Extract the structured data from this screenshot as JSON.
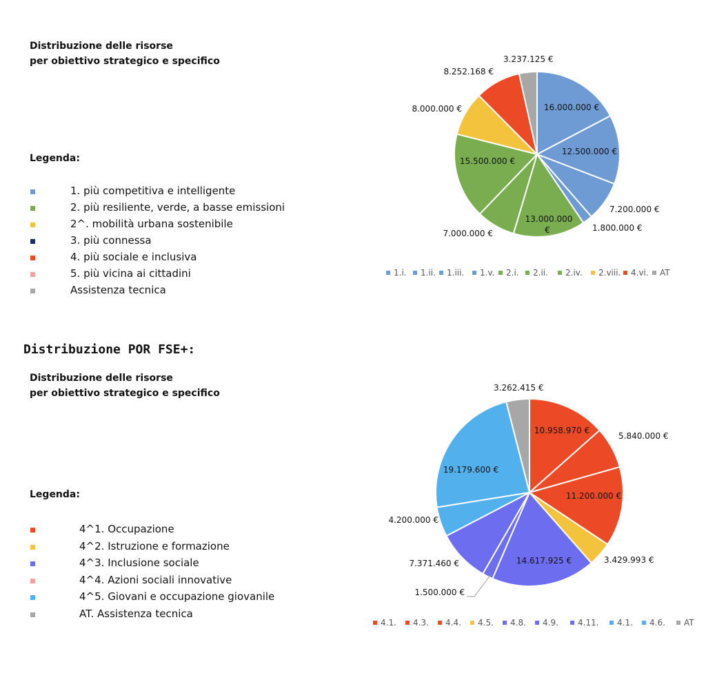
{
  "top": {
    "subtitle_line1": "Distribuzione delle risorse",
    "subtitle_line2": "per obiettivo strategico e specifico",
    "legend_title": "Legenda:",
    "legend": [
      {
        "label": "1. più competitiva e intelligente",
        "color": "#6f9bd4"
      },
      {
        "label": "2. più resiliente, verde, a basse emissioni",
        "color": "#79ad4f"
      },
      {
        "label": "2^. mobilità urbana sostenibile",
        "color": "#f4c33e"
      },
      {
        "label": "3. più connessa",
        "color": "#1c2d6b"
      },
      {
        "label": "4. più sociale e inclusiva",
        "color": "#ec4a26"
      },
      {
        "label": "5. più vicina ai cittadini",
        "color": "#f1a39c"
      },
      {
        "label": "Assistenza tecnica",
        "color": "#a7a7a7"
      }
    ]
  },
  "bottom": {
    "section_title": "Distribuzione POR FSE+:",
    "subtitle_line1": "Distribuzione delle risorse",
    "subtitle_line2": "per obiettivo strategico e specifico",
    "legend_title": "Legenda:",
    "legend": [
      {
        "label": "4^1. Occupazione",
        "color": "#ec4a26"
      },
      {
        "label": "4^2. Istruzione e formazione",
        "color": "#f4c33e"
      },
      {
        "label": "4^3. Inclusione sociale",
        "color": "#6d6df0"
      },
      {
        "label": "4^4. Azioni sociali innovative",
        "color": "#f1a39c"
      },
      {
        "label": "4^5. Giovani e occupazione giovanile",
        "color": "#52b0ec"
      },
      {
        "label": "AT. Assistenza tecnica",
        "color": "#a7a7a7"
      }
    ]
  },
  "chart_data": [
    {
      "type": "pie",
      "start_angle": "12 o'clock",
      "direction": "clockwise",
      "categories": [
        "1.i.",
        "1.ii.",
        "1.iii.",
        "1.v.",
        "2.i.",
        "2.ii.",
        "2.iv.",
        "2.viii.",
        "4.vi.",
        "AT"
      ],
      "values": [
        16000000,
        12500000,
        7200000,
        1800000,
        13000000,
        7000000,
        15500000,
        8000000,
        8252168,
        3237125
      ],
      "labels": [
        "16.000.000 €",
        "12.500.000 €",
        "7.200.000 €",
        "1.800.000 €",
        "13.000.000 €",
        "7.000.000 €",
        "15.500.000 €",
        "8.000.000 €",
        "8.252.168 €",
        "3.237.125 €"
      ],
      "colors": [
        "#6f9bd4",
        "#6f9bd4",
        "#6f9bd4",
        "#6f9bd4",
        "#79ad4f",
        "#79ad4f",
        "#79ad4f",
        "#f4c33e",
        "#ec4a26",
        "#a7a7a7"
      ],
      "legend_placement": "bottom"
    },
    {
      "type": "pie",
      "start_angle": "12 o'clock",
      "direction": "clockwise",
      "categories": [
        "4.1.",
        "4.3.",
        "4.4.",
        "4.5.",
        "4.8.",
        "4.9.",
        "4.11.",
        "4.1.",
        "4.6.",
        "AT"
      ],
      "values": [
        10958970,
        5840000,
        11200000,
        3429993,
        14617925,
        1500000,
        7371460,
        4200000,
        19179600,
        3262415
      ],
      "labels": [
        "10.958.970 €",
        "5.840.000 €",
        "11.200.000 €",
        "3.429.993 €",
        "14.617.925 €",
        "1.500.000 €",
        "7.371.460 €",
        "4.200.000 €",
        "19.179.600 €",
        "3.262.415 €"
      ],
      "colors": [
        "#ec4a26",
        "#ec4a26",
        "#ec4a26",
        "#f4c33e",
        "#6d6df0",
        "#6d6df0",
        "#6d6df0",
        "#52b0ec",
        "#52b0ec",
        "#a7a7a7"
      ],
      "legend_placement": "bottom"
    }
  ]
}
